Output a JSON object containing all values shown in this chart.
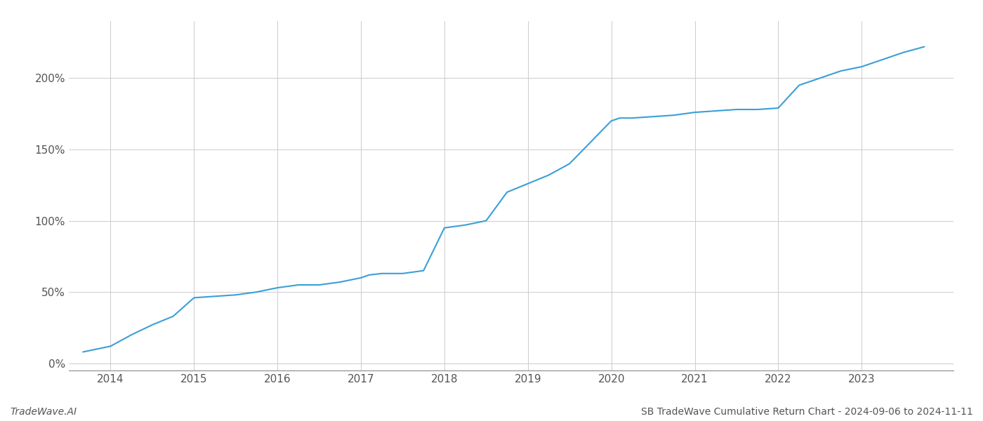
{
  "title": "SB TradeWave Cumulative Return Chart - 2024-09-06 to 2024-11-11",
  "watermark": "TradeWave.AI",
  "line_color": "#3a9fd8",
  "background_color": "#ffffff",
  "grid_color": "#cccccc",
  "x_years": [
    2014,
    2015,
    2016,
    2017,
    2018,
    2019,
    2020,
    2021,
    2022,
    2023
  ],
  "x_data": [
    2013.67,
    2014.0,
    2014.25,
    2014.5,
    2014.75,
    2015.0,
    2015.25,
    2015.5,
    2015.75,
    2016.0,
    2016.25,
    2016.5,
    2016.75,
    2017.0,
    2017.1,
    2017.25,
    2017.5,
    2017.75,
    2018.0,
    2018.25,
    2018.5,
    2018.75,
    2019.0,
    2019.25,
    2019.5,
    2019.75,
    2020.0,
    2020.1,
    2020.25,
    2020.5,
    2020.75,
    2021.0,
    2021.25,
    2021.5,
    2021.75,
    2022.0,
    2022.25,
    2022.5,
    2022.75,
    2023.0,
    2023.25,
    2023.5,
    2023.75
  ],
  "y_data": [
    8,
    12,
    20,
    27,
    33,
    46,
    47,
    48,
    50,
    53,
    55,
    55,
    57,
    60,
    62,
    63,
    63,
    65,
    95,
    97,
    100,
    120,
    126,
    132,
    140,
    155,
    170,
    172,
    172,
    173,
    174,
    176,
    177,
    178,
    178,
    179,
    195,
    200,
    205,
    208,
    213,
    218,
    222
  ],
  "ylim": [
    -5,
    240
  ],
  "yticks": [
    0,
    50,
    100,
    150,
    200
  ],
  "xlim": [
    2013.5,
    2024.1
  ],
  "line_width": 1.5,
  "figsize": [
    14.0,
    6.0
  ],
  "dpi": 100
}
